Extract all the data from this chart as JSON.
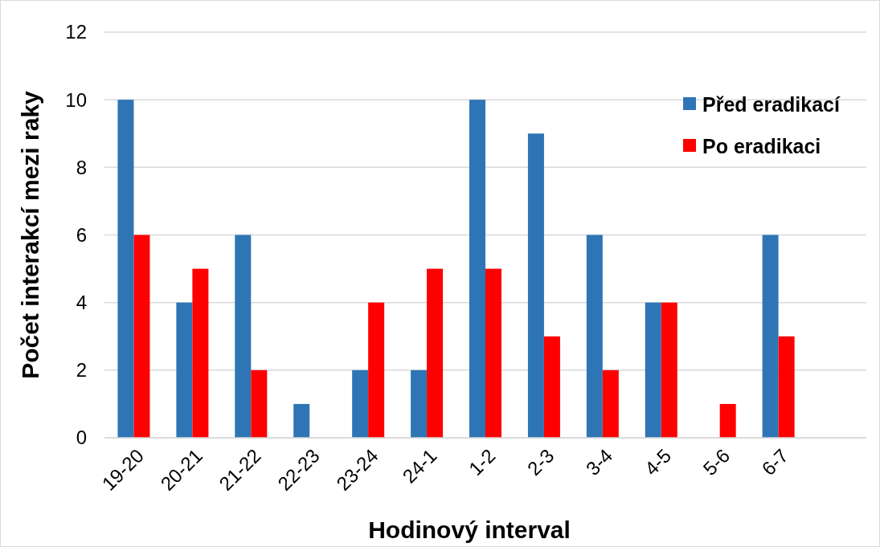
{
  "chart_data": {
    "type": "bar",
    "xlabel": "Hodinový interval",
    "ylabel": "Počet interakcí mezi raky",
    "categories": [
      "19-20",
      "20-21",
      "21-22",
      "22-23",
      "23-24",
      "24-1",
      "1-2",
      "2-3",
      "3-4",
      "4-5",
      "5-6",
      "6-7",
      null
    ],
    "series": [
      {
        "name": "Před eradikací",
        "color": "#2e75b6",
        "values": [
          10,
          4,
          6,
          1,
          2,
          2,
          10,
          9,
          6,
          4,
          0,
          6,
          null
        ]
      },
      {
        "name": "Po eradikaci",
        "color": "#ff0000",
        "values": [
          6,
          5,
          2,
          0,
          4,
          5,
          5,
          3,
          2,
          4,
          1,
          3,
          null
        ]
      }
    ],
    "ylim": [
      0,
      12
    ],
    "yticks": [
      0,
      2,
      4,
      6,
      8,
      10,
      12
    ],
    "grid": "y",
    "legend": "top right"
  }
}
